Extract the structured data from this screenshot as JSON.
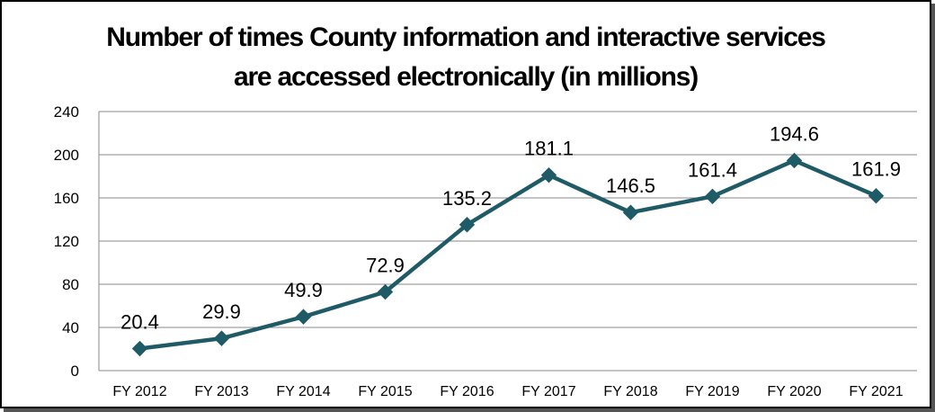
{
  "chart_data": {
    "type": "line",
    "title_lines": [
      "Number of times County information and interactive services",
      "are accessed electronically (in millions)"
    ],
    "categories": [
      "FY 2012",
      "FY 2013",
      "FY 2014",
      "FY 2015",
      "FY 2016",
      "FY 2017",
      "FY 2018",
      "FY 2019",
      "FY 2020",
      "FY 2021"
    ],
    "values": [
      20.4,
      29.9,
      49.9,
      72.9,
      135.2,
      181.1,
      146.5,
      161.4,
      194.6,
      161.9
    ],
    "data_labels": [
      "20.4",
      "29.9",
      "49.9",
      "72.9",
      "135.2",
      "181.1",
      "146.5",
      "161.4",
      "194.6",
      "161.9"
    ],
    "yticks": [
      "0",
      "40",
      "80",
      "120",
      "160",
      "200",
      "240"
    ],
    "ylim": [
      0,
      240
    ],
    "grid": true,
    "legend": "none",
    "line_color": "#1f5a67",
    "grid_color": "#888888",
    "marker": "diamond"
  }
}
